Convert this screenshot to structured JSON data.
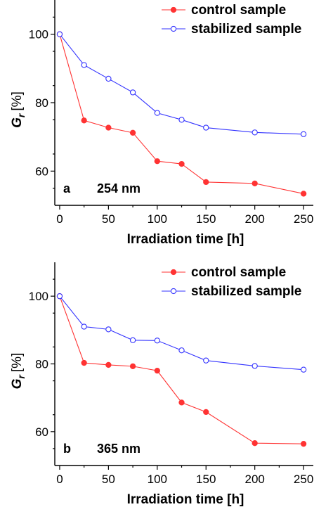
{
  "chart_data": [
    {
      "type": "line",
      "panel_label": "a",
      "annotation": "254 nm",
      "xlabel": "Irradiation time [h]",
      "ylabel_main": "G",
      "ylabel_sub": "r",
      "ylabel_unit": "[%]",
      "xlim": [
        -5,
        260
      ],
      "ylim": [
        50,
        110
      ],
      "xticks": [
        0,
        50,
        100,
        150,
        200,
        250
      ],
      "yticks": [
        60,
        80,
        100
      ],
      "legend_position": "top-right",
      "series": [
        {
          "name": "control sample",
          "color": "#ff3333",
          "marker": "filled-circle",
          "x": [
            0,
            25,
            50,
            75,
            100,
            125,
            150,
            200,
            250
          ],
          "y": [
            100,
            74.8,
            72.7,
            71.2,
            62.9,
            62.1,
            56.8,
            56.4,
            53.4
          ]
        },
        {
          "name": "stabilized sample",
          "color": "#3333ff",
          "marker": "open-circle",
          "x": [
            0,
            25,
            50,
            75,
            100,
            125,
            150,
            200,
            250
          ],
          "y": [
            100,
            91,
            87,
            83,
            77,
            75,
            72.7,
            71.3,
            70.8
          ]
        }
      ]
    },
    {
      "type": "line",
      "panel_label": "b",
      "annotation": "365 nm",
      "xlabel": "Irradiation time [h]",
      "ylabel_main": "G",
      "ylabel_sub": "r",
      "ylabel_unit": "[%]",
      "xlim": [
        -5,
        260
      ],
      "ylim": [
        50,
        110
      ],
      "xticks": [
        0,
        50,
        100,
        150,
        200,
        250
      ],
      "yticks": [
        60,
        80,
        100
      ],
      "legend_position": "top-right",
      "series": [
        {
          "name": "control sample",
          "color": "#ff3333",
          "marker": "filled-circle",
          "x": [
            0,
            25,
            50,
            75,
            100,
            125,
            150,
            200,
            250
          ],
          "y": [
            100,
            80.3,
            79.7,
            79.3,
            78,
            68.6,
            65.8,
            56.6,
            56.4
          ]
        },
        {
          "name": "stabilized sample",
          "color": "#3333ff",
          "marker": "open-circle",
          "x": [
            0,
            25,
            50,
            75,
            100,
            125,
            150,
            200,
            250
          ],
          "y": [
            100,
            91,
            90.2,
            87,
            86.9,
            84,
            81,
            79.4,
            78.3
          ]
        }
      ]
    }
  ]
}
